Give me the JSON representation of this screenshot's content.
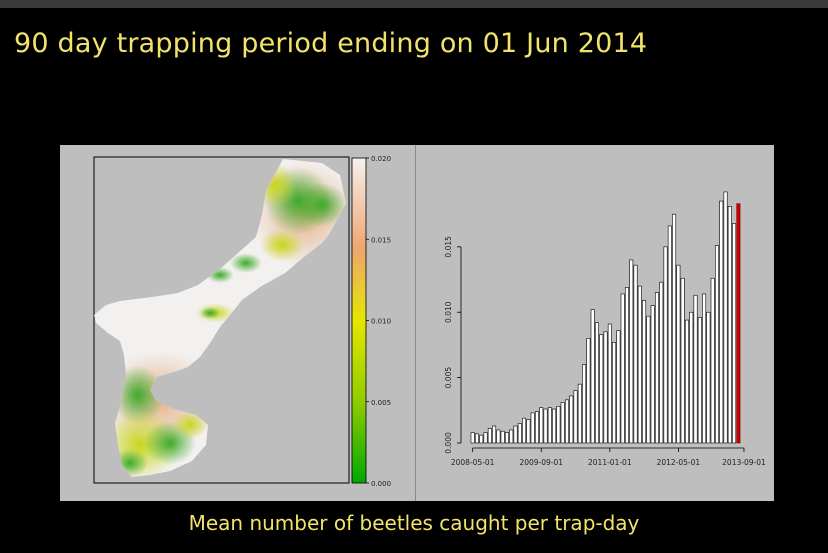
{
  "slide": {
    "title": "90 day trapping period ending on 01 Jun 2014",
    "caption": "Mean number of beetles caught per trap-day"
  },
  "colors": {
    "background": "#000000",
    "title_text": "#f2e36b",
    "panel": "#bebebe",
    "bar_fill": "#ffffff",
    "bar_stroke": "#000000",
    "current_bar": "#cc0000"
  },
  "chart_data": [
    {
      "type": "heatmap",
      "title": "",
      "colorbar": {
        "ticks": [
          "0.000",
          "0.005",
          "0.010",
          "0.015",
          "0.020"
        ],
        "range": [
          0,
          0.02
        ],
        "colors_low_to_high": [
          "#00a800",
          "#e6e600",
          "#eea66e",
          "#f2f2f2"
        ]
      }
    },
    {
      "type": "bar",
      "title": "",
      "xlabel": "",
      "ylabel": "",
      "ylim": [
        0,
        0.0195
      ],
      "y_ticks": [
        "0.000",
        "0.005",
        "0.010",
        "0.015"
      ],
      "x_ticks": [
        "2008-05-01",
        "2009-09-01",
        "2011-01-01",
        "2012-05-01",
        "2013-09-01"
      ],
      "series": [
        {
          "values": [
            0.0008,
            0.0007,
            0.0006,
            0.0008,
            0.0011,
            0.0013,
            0.001,
            0.0009,
            0.0008,
            0.001,
            0.0013,
            0.0015,
            0.0019,
            0.0018,
            0.0023,
            0.0024,
            0.0027,
            0.0026,
            0.0027,
            0.0026,
            0.0028,
            0.0031,
            0.0033,
            0.0036,
            0.004,
            0.0045,
            0.006,
            0.008,
            0.0102,
            0.0092,
            0.0083,
            0.0085,
            0.0091,
            0.0077,
            0.0086,
            0.0114,
            0.0119,
            0.014,
            0.0136,
            0.012,
            0.0109,
            0.0097,
            0.0105,
            0.0115,
            0.0123,
            0.015,
            0.0166,
            0.0175,
            0.0136,
            0.0126,
            0.0094,
            0.01,
            0.0113,
            0.0096,
            0.0114,
            0.01,
            0.0126,
            0.0151,
            0.0185,
            0.0192,
            0.0181,
            0.0168,
            0.0183
          ]
        }
      ],
      "highlight": {
        "index": 62,
        "color": "#cc0000"
      }
    }
  ]
}
